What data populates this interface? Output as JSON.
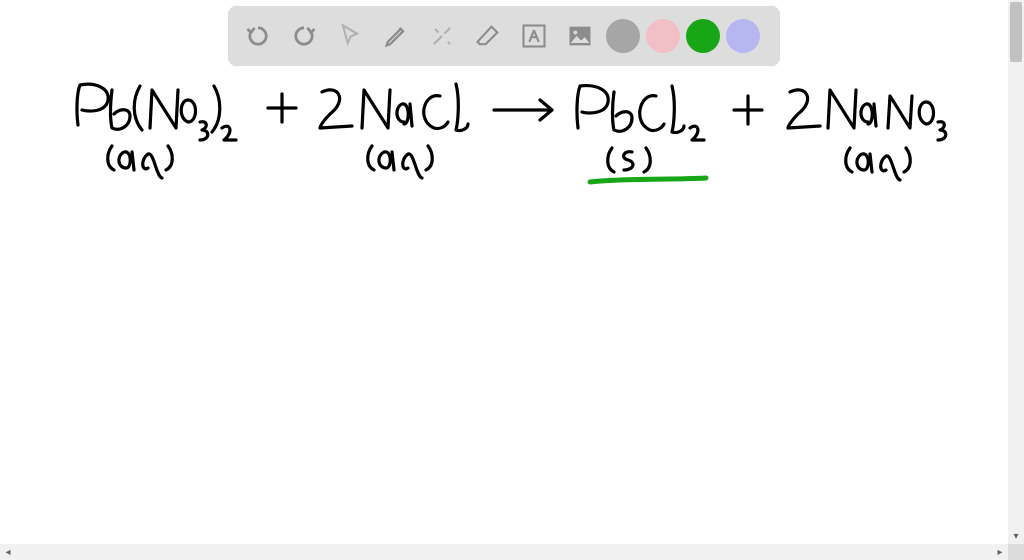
{
  "canvas": {
    "background_color": "#ffffff"
  },
  "toolbar": {
    "background_color": "#dddddd",
    "icon_color": "#8d8d8d",
    "icon_color_muted": "#b0b0b0",
    "tools": {
      "undo": "undo",
      "redo": "redo",
      "pointer": "pointer",
      "pen": "pen",
      "tools": "tools",
      "eraser": "eraser",
      "text": "text",
      "image": "image"
    },
    "colors": [
      "#a6a6a6",
      "#f2bfc7",
      "#16a616",
      "#b6b6f0"
    ]
  },
  "scrollbar": {
    "track_color": "#f1f1f1",
    "thumb_color": "#c1c1c1"
  },
  "handwriting": {
    "stroke_color": "#000000",
    "stroke_width": 3.2,
    "underline_color": "#16a616",
    "underline_width": 5,
    "equation": {
      "reactant1": {
        "formula": "Pb(NO3)2",
        "state": "(aq)"
      },
      "reactant2": {
        "coeff": "2",
        "formula": "NaCl",
        "state": "(aq)"
      },
      "product1": {
        "formula": "PbCl2",
        "state": "(s)",
        "underlined": true
      },
      "product2": {
        "coeff": "2",
        "formula": "NaNO3",
        "state": "(aq)"
      }
    }
  }
}
